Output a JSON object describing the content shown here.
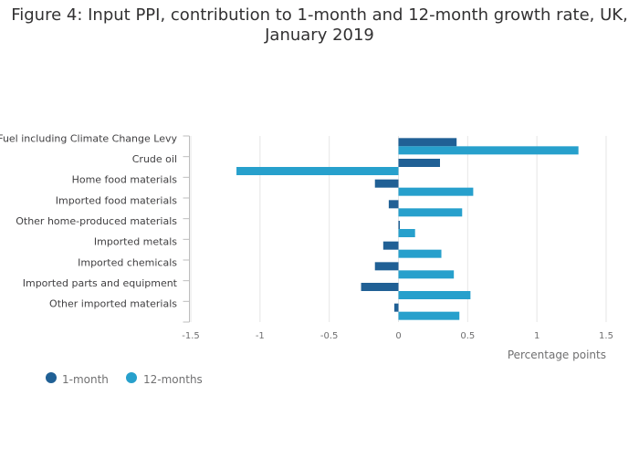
{
  "chart_data": {
    "type": "bar",
    "orientation": "horizontal",
    "title_line1": "Figure 4: Input PPI, contribution to 1-month and 12-month growth rate, UK,",
    "title_line2": "January 2019",
    "xlabel": "Percentage points",
    "xlim": [
      -1.5,
      1.5
    ],
    "xticks": [
      -1.5,
      -1,
      -0.5,
      0,
      0.5,
      1,
      1.5
    ],
    "xtick_labels": [
      "-1.5",
      "-1",
      "-0.5",
      "0",
      "0.5",
      "1",
      "1.5"
    ],
    "grid": true,
    "legend_position": "bottom-left",
    "categories": [
      "Fuel including Climate Change Levy",
      "Crude oil",
      "Home food materials",
      "Imported food materials",
      "Other home-produced materials",
      "Imported metals",
      "Imported chemicals",
      "Imported parts and equipment",
      "Other imported materials"
    ],
    "series": [
      {
        "name": "1-month",
        "color": "#206095",
        "values": [
          0.42,
          0.3,
          -0.17,
          -0.07,
          0.01,
          -0.11,
          -0.17,
          -0.27,
          -0.03
        ]
      },
      {
        "name": "12-months",
        "color": "#27a0cc",
        "values": [
          1.3,
          -1.17,
          0.54,
          0.46,
          0.12,
          0.31,
          0.4,
          0.52,
          0.44
        ]
      }
    ]
  }
}
